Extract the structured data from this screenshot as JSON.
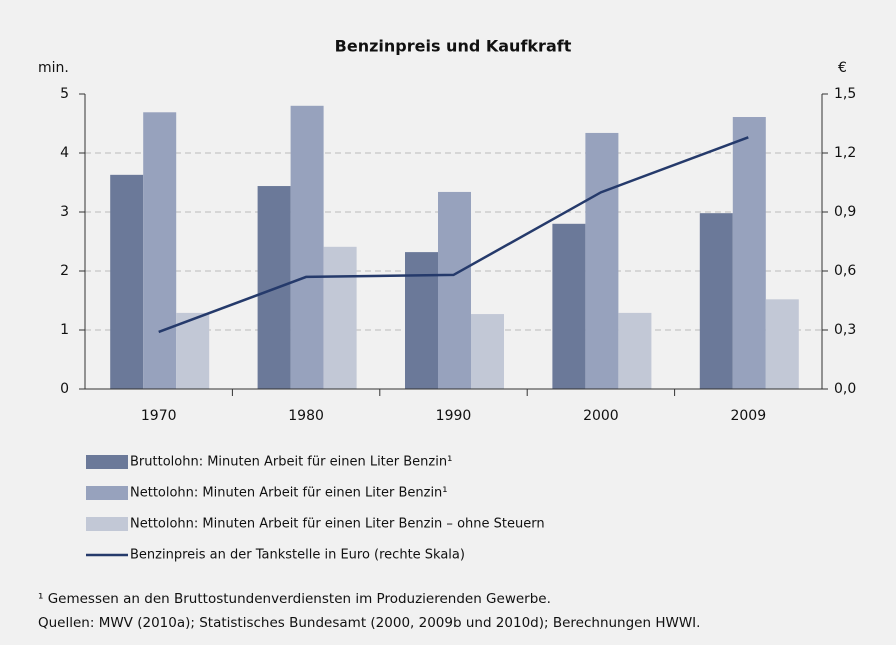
{
  "chart_data": {
    "type": "bar",
    "title": "Benzinpreis und Kaufkraft",
    "ylabel": "min.",
    "y2label": "€",
    "categories": [
      "1970",
      "1980",
      "1990",
      "2000",
      "2009"
    ],
    "series": [
      {
        "name": "Bruttolohn: Minuten Arbeit für einen Liter Benzin¹",
        "type": "bar",
        "color": "#6b7999",
        "values": [
          3.63,
          3.44,
          2.32,
          2.8,
          2.98
        ]
      },
      {
        "name": "Nettolohn: Minuten Arbeit für einen Liter Benzin¹",
        "type": "bar",
        "color": "#97a2bd",
        "values": [
          4.69,
          4.8,
          3.34,
          4.34,
          4.61
        ]
      },
      {
        "name": "Nettolohn: Minuten Arbeit für einen Liter Benzin – ohne Steuern",
        "type": "bar",
        "color": "#c2c8d6",
        "values": [
          1.29,
          2.41,
          1.27,
          1.29,
          1.52
        ]
      },
      {
        "name": "Benzinpreis an der Tankstelle in Euro (rechte Skala)",
        "type": "line",
        "axis": "y2",
        "color": "#253a6b",
        "values": [
          0.29,
          0.57,
          0.58,
          1.0,
          1.28
        ]
      }
    ],
    "ylim": [
      0,
      5
    ],
    "yticks": [
      0,
      1,
      2,
      3,
      4,
      5
    ],
    "y2lim": [
      0,
      1.5
    ],
    "y2ticks": [
      {
        "value": 0,
        "label": "0,0"
      },
      {
        "value": 0.3,
        "label": "0,3"
      },
      {
        "value": 0.6,
        "label": "0,6"
      },
      {
        "value": 0.9,
        "label": "0,9"
      },
      {
        "value": 1.2,
        "label": "1,2"
      },
      {
        "value": 1.5,
        "label": "1,5"
      }
    ],
    "grid": true,
    "legend": "bottom",
    "notes": [
      "¹ Gemessen an den Bruttostundenverdiensten im Produzierenden Gewerbe.",
      "Quellen: MWV (2010a); Statistisches Bundesamt (2000, 2009b und 2010d); Berechnungen HWWI."
    ]
  }
}
